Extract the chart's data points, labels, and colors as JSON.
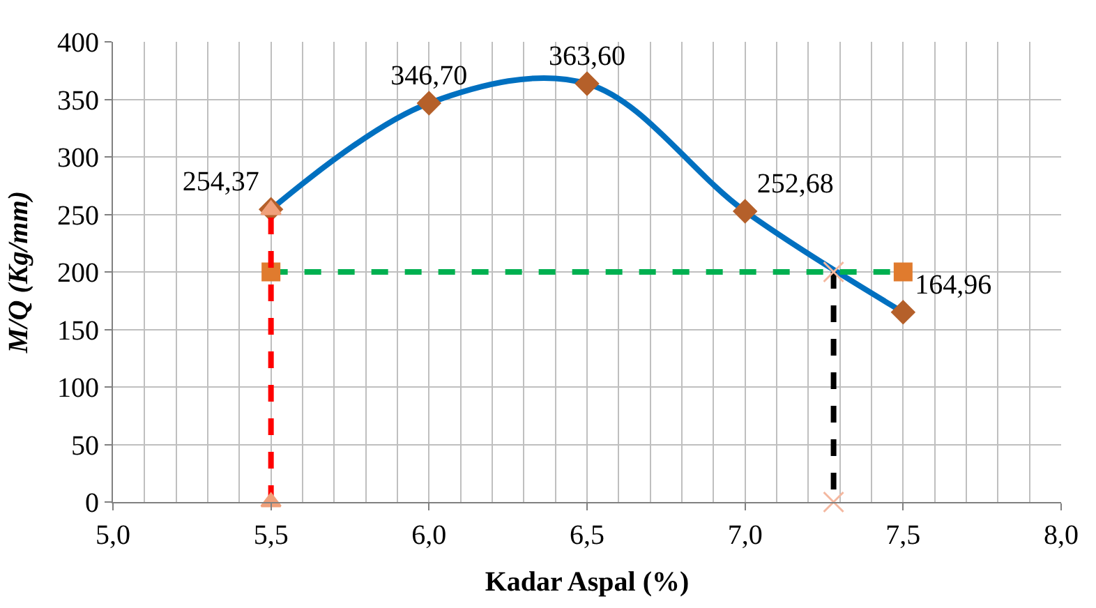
{
  "chart_data": {
    "type": "line",
    "xlabel": "Kadar Aspal (%)",
    "ylabel": "M/Q (Kg/mm)",
    "xlim": [
      5.0,
      8.0
    ],
    "xticks": [
      {
        "value": 5.0,
        "label": "5,0"
      },
      {
        "value": 5.5,
        "label": "5,5"
      },
      {
        "value": 6.0,
        "label": "6,0"
      },
      {
        "value": 6.5,
        "label": "6,5"
      },
      {
        "value": 7.0,
        "label": "7,0"
      },
      {
        "value": 7.5,
        "label": "7,5"
      },
      {
        "value": 8.0,
        "label": "8,0"
      }
    ],
    "ylim": [
      0,
      400
    ],
    "yticks": [
      0,
      50,
      100,
      150,
      200,
      250,
      300,
      350,
      400
    ],
    "grid": true,
    "series": [
      {
        "x": [
          5.5,
          6.0,
          6.5,
          7.0,
          7.5
        ],
        "values": [
          254.37,
          346.7,
          363.6,
          252.68,
          164.96
        ],
        "color": "#0070c0",
        "colors": [
          "#b5602a",
          "#b5602a",
          "#b5602a",
          "#b5602a",
          "#b5602a"
        ],
        "marker": "diamond",
        "line_style": "solid",
        "value_labels": [
          "254,37",
          "346,70",
          "363,60",
          "252,68",
          "164,96"
        ]
      },
      {
        "x": [
          5.5,
          7.5
        ],
        "values": [
          200,
          200
        ],
        "color": "#00b050",
        "colors": [
          "#e07b2e",
          "#e07b2e"
        ],
        "marker": "square",
        "line_style": "dashed"
      },
      {
        "x": [
          5.5,
          5.5
        ],
        "values": [
          0,
          254
        ],
        "color": "#ff0000",
        "colors": [
          "#f0a07a",
          "#f0a07a"
        ],
        "marker": "triangle",
        "line_style": "dashed"
      },
      {
        "x": [
          7.28,
          7.28
        ],
        "values": [
          200,
          0
        ],
        "color": "#000000",
        "colors": [
          "#f4b8a0",
          "#f4b8a0"
        ],
        "marker": "cross",
        "line_style": "dashed"
      }
    ]
  }
}
